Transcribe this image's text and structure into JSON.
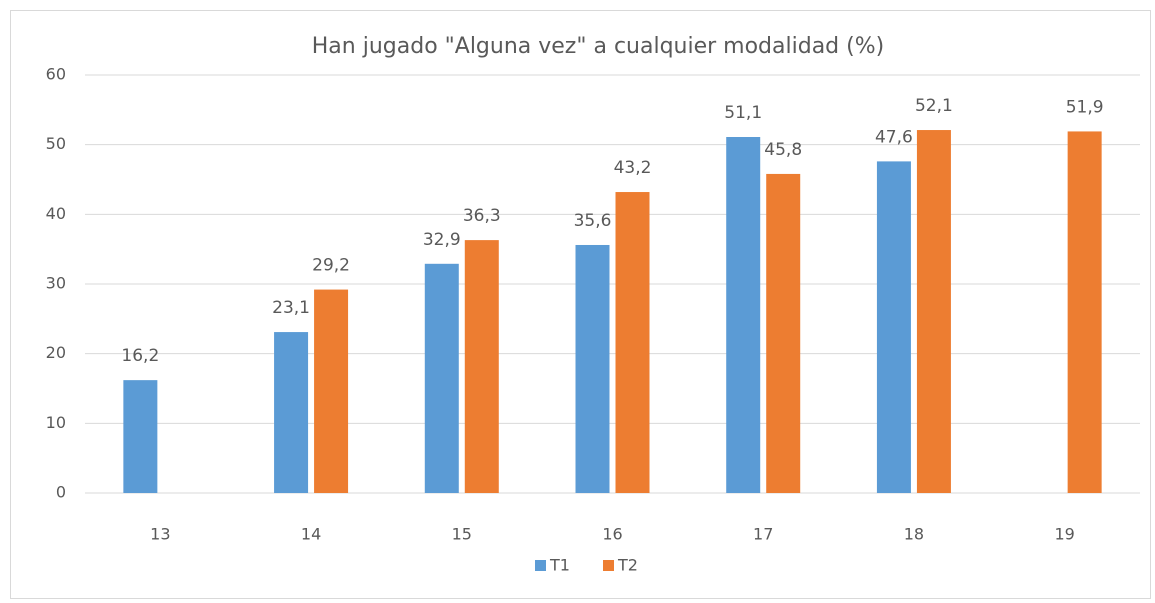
{
  "chart_data": {
    "type": "bar",
    "title": "Han jugado \"Alguna vez\" a cualquier modalidad (%)",
    "categories": [
      "13",
      "14",
      "15",
      "16",
      "17",
      "18",
      "19"
    ],
    "series": [
      {
        "name": "T1",
        "color": "#5b9bd5",
        "values": [
          16.2,
          23.1,
          32.9,
          35.6,
          51.1,
          47.6,
          null
        ],
        "value_labels": [
          "16,2",
          "23,1",
          "32,9",
          "35,6",
          "51,1",
          "47,6",
          null
        ]
      },
      {
        "name": "T2",
        "color": "#ed7d31",
        "values": [
          null,
          29.2,
          36.3,
          43.2,
          45.8,
          52.1,
          51.9
        ],
        "value_labels": [
          null,
          "29,2",
          "36,3",
          "43,2",
          "45,8",
          "52,1",
          "51,9"
        ]
      }
    ],
    "ylim": [
      0,
      60
    ],
    "yticks": [
      0,
      10,
      20,
      30,
      40,
      50,
      60
    ],
    "grid": true,
    "legend": "bottom"
  }
}
